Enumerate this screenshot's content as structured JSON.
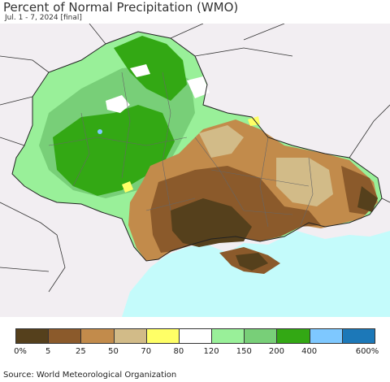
{
  "title": "Percent of Normal Precipitation (WMO)",
  "subtitle": "Jul. 1 - 7, 2024 [final]",
  "source": "Source: World Meteorological Organization",
  "legend": {
    "colors": [
      "#55401c",
      "#8b5a2b",
      "#c28b4b",
      "#d2bb88",
      "#ffff66",
      "#ffffff",
      "#99f099",
      "#78cf78",
      "#33a814",
      "#7ec8ff",
      "#1c78b8"
    ],
    "ticks": [
      "0%",
      "5",
      "25",
      "50",
      "70",
      "80",
      "120",
      "150",
      "200",
      "400",
      "600%"
    ]
  },
  "map_colors": {
    "land_outside": "#f2eef2",
    "sea": "#c4fbfb",
    "green_dark": "#33a814",
    "green_mid": "#78cf78",
    "green_light": "#99f099",
    "white": "#ffffff",
    "tan": "#d2bb88",
    "brown_light": "#c28b4b",
    "brown": "#8b5a2b",
    "brown_dark": "#55401c",
    "blue_light": "#7ec8ff",
    "yellow": "#ffff66"
  }
}
